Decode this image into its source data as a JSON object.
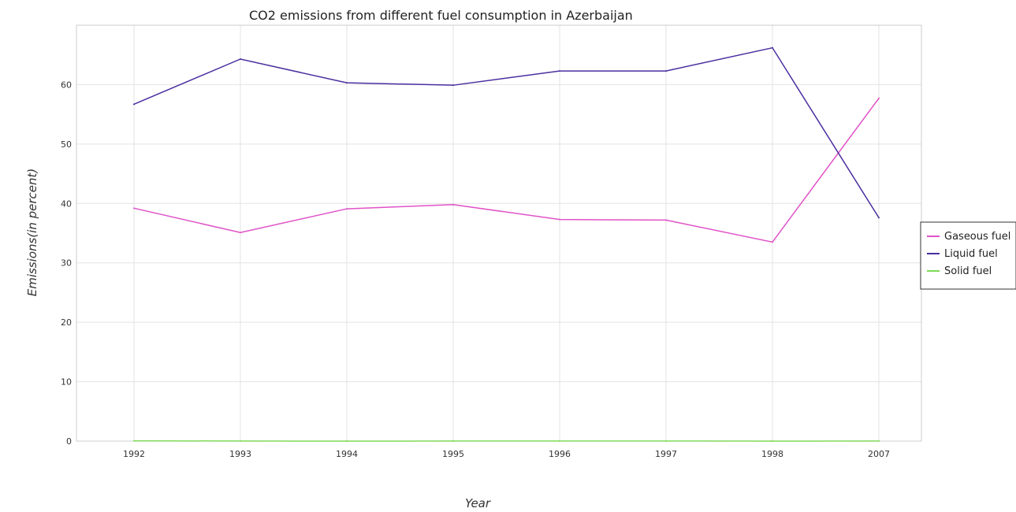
{
  "chart_data": {
    "type": "line",
    "title": "CO2 emissions from different fuel consumption in Azerbaijan",
    "xlabel": "Year",
    "ylabel": "Emissions(in percent)",
    "categories": [
      "1992",
      "1993",
      "1994",
      "1995",
      "1996",
      "1997",
      "1998",
      "2007"
    ],
    "ylim": [
      0,
      70
    ],
    "yticks": [
      "0",
      "10",
      "20",
      "30",
      "40",
      "50",
      "60"
    ],
    "grid": true,
    "legend_position": "right",
    "series": [
      {
        "name": "Gaseous fuel",
        "color": "#e052c8",
        "values": [
          39.2,
          35.1,
          39.1,
          39.8,
          37.3,
          37.2,
          33.5,
          57.7
        ]
      },
      {
        "name": "Liquid fuel",
        "color": "#4b2ea0",
        "values": [
          56.7,
          64.3,
          60.3,
          59.9,
          62.3,
          62.3,
          66.2,
          37.6
        ]
      },
      {
        "name": "Solid fuel",
        "color": "#7ed957",
        "values": [
          0.05,
          0.01,
          0.0,
          0.01,
          0.02,
          0.02,
          0.0,
          0.01
        ]
      }
    ]
  }
}
